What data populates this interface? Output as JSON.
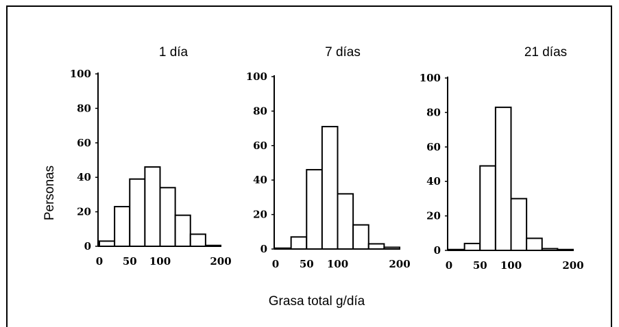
{
  "figure": {
    "ylabel": "Personas",
    "xlabel": "Grasa total g/día"
  },
  "chart_data": [
    {
      "type": "bar",
      "title": "1 día",
      "bin_edges": [
        0,
        25,
        50,
        75,
        100,
        125,
        150,
        175,
        200
      ],
      "values": [
        3,
        23,
        39,
        46,
        34,
        18,
        7,
        0.5
      ],
      "ylim": [
        0,
        100
      ],
      "yticks": [
        "0",
        "20",
        "40",
        "60",
        "80",
        "100"
      ],
      "xticks": [
        "0",
        "50",
        "100",
        "200"
      ]
    },
    {
      "type": "bar",
      "title": "7 días",
      "bin_edges": [
        0,
        25,
        50,
        75,
        100,
        125,
        150,
        175,
        200
      ],
      "values": [
        0.5,
        7,
        46,
        71,
        32,
        14,
        3,
        1
      ],
      "ylim": [
        0,
        100
      ],
      "yticks": [
        "0",
        "20",
        "40",
        "60",
        "80",
        "100"
      ],
      "xticks": [
        "0",
        "50",
        "100",
        "200"
      ]
    },
    {
      "type": "bar",
      "title": "21 días",
      "bin_edges": [
        0,
        25,
        50,
        75,
        100,
        125,
        150,
        175,
        200
      ],
      "values": [
        0.5,
        4,
        49,
        83,
        30,
        7,
        1,
        0.5
      ],
      "ylim": [
        0,
        100
      ],
      "yticks": [
        "0",
        "20",
        "40",
        "60",
        "80",
        "100"
      ],
      "xticks": [
        "0",
        "50",
        "100",
        "200"
      ]
    }
  ]
}
